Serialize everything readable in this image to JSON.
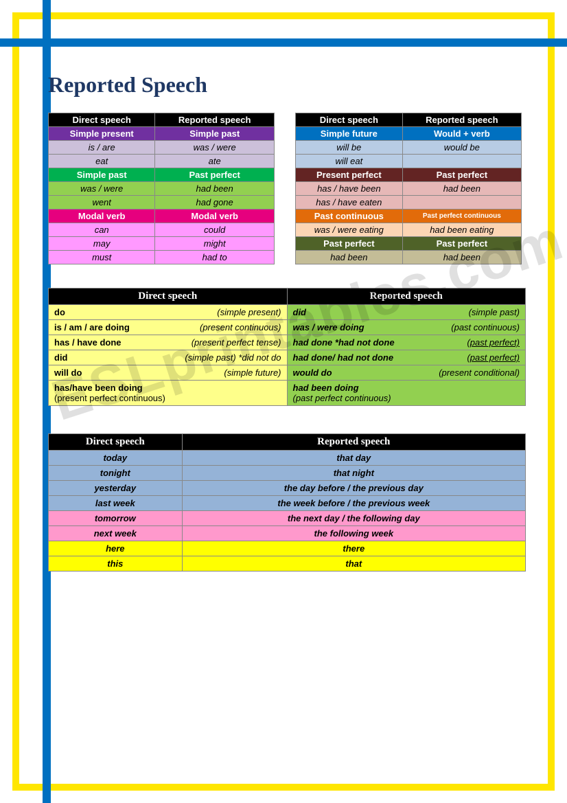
{
  "title": "Reported Speech",
  "watermark": "ESLprintables.com",
  "colors": {
    "black": "#000000",
    "purple_hdr": "#7030a0",
    "purple_cell": "#ccc0da",
    "green_hdr": "#00b050",
    "green_cell": "#92d050",
    "pink_hdr": "#e6007e",
    "pink_cell": "#ff99ff",
    "blue_hdr": "#0070c0",
    "blue_cell": "#b8cce4",
    "brown_hdr": "#632423",
    "brown_cell": "#e6b8b7",
    "orange_hdr": "#e26b0a",
    "orange_cell": "#fcd5b4",
    "olive_hdr": "#4f6228",
    "olive_cell": "#c4bd97",
    "yellow_t3": "#feff8a",
    "green_t3": "#92d050",
    "t4_blue": "#95b3d7",
    "t4_pink": "#ff99cc",
    "t4_yellow": "#ffff00"
  },
  "table1": {
    "headers": [
      "Direct speech",
      "Reported speech"
    ],
    "sections": [
      {
        "label_l": "Simple present",
        "label_r": "Simple past",
        "bg": "#7030a0",
        "cellbg": "#ccc0da",
        "rows": [
          [
            "is / are",
            "was / were"
          ],
          [
            "eat",
            "ate"
          ]
        ]
      },
      {
        "label_l": "Simple past",
        "label_r": "Past perfect",
        "bg": "#00b050",
        "cellbg": "#92d050",
        "rows": [
          [
            "was / were",
            "had been"
          ],
          [
            "went",
            "had gone"
          ]
        ]
      },
      {
        "label_l": "Modal verb",
        "label_r": "Modal verb",
        "bg": "#e6007e",
        "cellbg": "#ff99ff",
        "rows": [
          [
            "can",
            "could"
          ],
          [
            "may",
            "might"
          ],
          [
            "must",
            "had to"
          ]
        ]
      }
    ]
  },
  "table2": {
    "headers": [
      "Direct speech",
      "Reported speech"
    ],
    "sections": [
      {
        "label_l": "Simple future",
        "label_r": "Would + verb",
        "bg": "#0070c0",
        "cellbg": "#b8cce4",
        "rows": [
          [
            "will be",
            "would be"
          ],
          [
            "will eat",
            ""
          ]
        ]
      },
      {
        "label_l": "Present perfect",
        "label_r": "Past perfect",
        "bg": "#632423",
        "cellbg": "#e6b8b7",
        "rows": [
          [
            "has / have been",
            "had been"
          ],
          [
            "has / have eaten",
            ""
          ]
        ]
      },
      {
        "label_l": "Past continuous",
        "label_r": "Past perfect continuous",
        "bg": "#e26b0a",
        "cellbg": "#fcd5b4",
        "small_r": true,
        "rows": [
          [
            "was / were eating",
            "had been eating"
          ]
        ]
      },
      {
        "label_l": "Past perfect",
        "label_r": "Past perfect",
        "bg": "#4f6228",
        "cellbg": "#c4bd97",
        "rows": [
          [
            "had been",
            "had been"
          ]
        ]
      }
    ]
  },
  "table3": {
    "headers": [
      "Direct speech",
      "Reported speech"
    ],
    "rows": [
      {
        "l": "do",
        "lp": "(simple present)",
        "r": "did",
        "rp": "(simple past)"
      },
      {
        "l": "is / am / are doing",
        "lp": "(present continuous)",
        "r": "was / were doing",
        "rp": "(past continuous)"
      },
      {
        "l": "has / have done",
        "lp": "(present perfect tense)",
        "r": "had done    *had not done",
        "rp": "(past perfect)",
        "ru": true
      },
      {
        "l": "did",
        "lp": "(simple past) *did not do",
        "lpi": true,
        "r": "had done/ had not done",
        "rp": "(past perfect)",
        "ru": true
      },
      {
        "l": "will do",
        "lp": "(simple future)",
        "r": "would do",
        "rp": "(present conditional)"
      },
      {
        "l": "has/have been doing",
        "l2": "(present perfect continuous)",
        "r": "had been doing",
        "r2": "(past perfect continuous)"
      }
    ]
  },
  "table4": {
    "headers": [
      "Direct speech",
      "Reported speech"
    ],
    "rows": [
      {
        "l": "today",
        "r": "that day",
        "bg": "#95b3d7"
      },
      {
        "l": "tonight",
        "r": "that night",
        "bg": "#95b3d7"
      },
      {
        "l": "yesterday",
        "r": "the day before / the previous day",
        "bg": "#95b3d7"
      },
      {
        "l": "last week",
        "r": "the week before / the previous week",
        "bg": "#95b3d7"
      },
      {
        "l": "tomorrow",
        "r": "the next day / the following day",
        "bg": "#ff99cc"
      },
      {
        "l": "next week",
        "r": "the following week",
        "bg": "#ff99cc"
      },
      {
        "l": "here",
        "r": "there",
        "bg": "#ffff00"
      },
      {
        "l": "this",
        "r": "that",
        "bg": "#ffff00"
      }
    ]
  }
}
